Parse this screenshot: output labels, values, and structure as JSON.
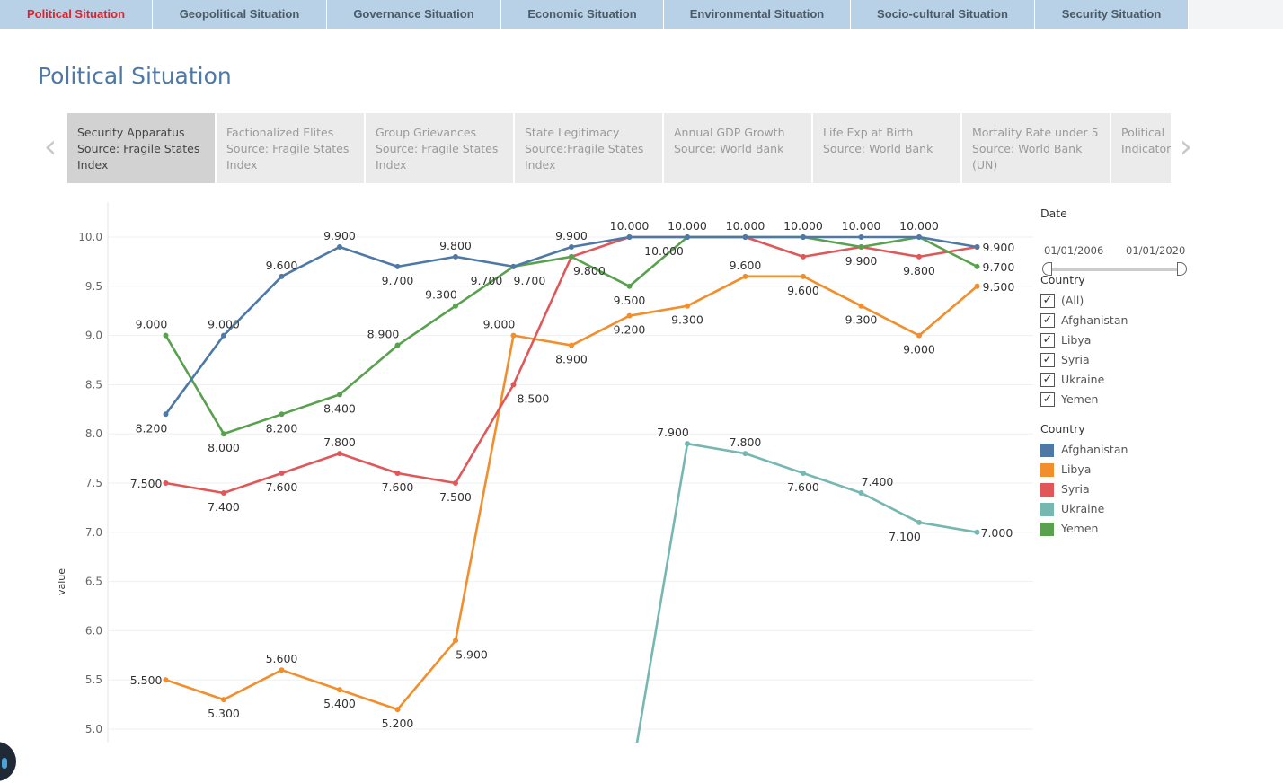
{
  "nav": {
    "tabs": [
      {
        "label": "Political Situation",
        "active": true
      },
      {
        "label": "Geopolitical Situation",
        "active": false
      },
      {
        "label": "Governance Situation",
        "active": false
      },
      {
        "label": "Economic Situation",
        "active": false
      },
      {
        "label": "Environmental Situation",
        "active": false
      },
      {
        "label": "Socio-cultural Situation",
        "active": false
      },
      {
        "label": "Security Situation",
        "active": false
      }
    ]
  },
  "page": {
    "title": "Political Situation"
  },
  "indicators": [
    {
      "lines": [
        "Security Apparatus",
        "Source: Fragile States",
        "Index"
      ],
      "active": true
    },
    {
      "lines": [
        "Factionalized Elites",
        "Source: Fragile States",
        "Index"
      ],
      "active": false
    },
    {
      "lines": [
        "Group Grievances",
        "Source: Fragile States",
        "Index"
      ],
      "active": false
    },
    {
      "lines": [
        "State Legitimacy",
        "Source:Fragile States",
        "Index"
      ],
      "active": false
    },
    {
      "lines": [
        "Annual GDP Growth",
        "Source: World Bank",
        ""
      ],
      "active": false
    },
    {
      "lines": [
        "Life Exp at Birth",
        "Source: World Bank",
        ""
      ],
      "active": false
    },
    {
      "lines": [
        "Mortality Rate under 5",
        "Source: World Bank",
        "(UN)"
      ],
      "active": false
    },
    {
      "lines": [
        "Political",
        "Indicator",
        ""
      ],
      "active": false
    }
  ],
  "carousel": {
    "prev_icon": "chevron-left-icon",
    "next_icon": "chevron-right-icon",
    "prev_glyph": "‹",
    "next_glyph": "›"
  },
  "filters": {
    "date_title": "Date",
    "date_from": "01/01/2006",
    "date_to": "01/01/2020",
    "country_title": "Country",
    "countries": [
      {
        "label": "(All)",
        "checked": true
      },
      {
        "label": "Afghanistan",
        "checked": true
      },
      {
        "label": "Libya",
        "checked": true
      },
      {
        "label": "Syria",
        "checked": true
      },
      {
        "label": "Ukraine",
        "checked": true
      },
      {
        "label": "Yemen",
        "checked": true
      }
    ],
    "check_glyph": "✓"
  },
  "legend": {
    "title": "Country",
    "items": [
      {
        "label": "Afghanistan",
        "color": "#4e79a7"
      },
      {
        "label": "Libya",
        "color": "#f28e2b"
      },
      {
        "label": "Syria",
        "color": "#e15759"
      },
      {
        "label": "Ukraine",
        "color": "#76b7b2"
      },
      {
        "label": "Yemen",
        "color": "#59a14f"
      }
    ]
  },
  "chart_data": {
    "type": "line",
    "title": "",
    "xlabel": "",
    "ylabel": "value",
    "ylim": [
      5.0,
      10.0
    ],
    "yticks": [
      "5.0",
      "5.5",
      "6.0",
      "6.5",
      "7.0",
      "7.5",
      "8.0",
      "8.5",
      "9.0",
      "9.5",
      "10.0"
    ],
    "xlim": [
      2006,
      2020
    ],
    "grid": true,
    "legend_position": "right",
    "series": [
      {
        "name": "Afghanistan",
        "color": "#4e79a7",
        "x": [
          2006,
          2007,
          2008,
          2009,
          2010,
          2011,
          2012,
          2013,
          2014,
          2015,
          2016,
          2017,
          2018,
          2019,
          2020
        ],
        "values": [
          8.2,
          9.0,
          9.6,
          9.9,
          9.7,
          9.8,
          9.7,
          9.9,
          10.0,
          10.0,
          10.0,
          10.0,
          10.0,
          10.0,
          9.9
        ]
      },
      {
        "name": "Libya",
        "color": "#f28e2b",
        "x": [
          2006,
          2007,
          2008,
          2009,
          2010,
          2011,
          2012,
          2013,
          2014,
          2015,
          2016,
          2017,
          2018,
          2019,
          2020
        ],
        "values": [
          5.5,
          5.3,
          5.6,
          5.4,
          5.2,
          5.9,
          9.0,
          8.9,
          9.2,
          9.3,
          9.6,
          9.6,
          9.3,
          9.0,
          9.5
        ]
      },
      {
        "name": "Syria",
        "color": "#e15759",
        "x": [
          2006,
          2007,
          2008,
          2009,
          2010,
          2011,
          2012,
          2013,
          2014,
          2015,
          2016,
          2017,
          2018,
          2019,
          2020
        ],
        "values": [
          7.5,
          7.4,
          7.6,
          7.8,
          7.6,
          7.5,
          8.5,
          9.8,
          10.0,
          10.0,
          10.0,
          9.8,
          9.9,
          9.8,
          9.9
        ]
      },
      {
        "name": "Ukraine",
        "color": "#76b7b2",
        "x": [
          2014,
          2015,
          2016,
          2017,
          2018,
          2019,
          2020
        ],
        "values": [
          4.4,
          7.9,
          7.8,
          7.6,
          7.4,
          7.1,
          7.0
        ]
      },
      {
        "name": "Yemen",
        "color": "#59a14f",
        "x": [
          2006,
          2007,
          2008,
          2009,
          2010,
          2011,
          2012,
          2013,
          2014,
          2015,
          2016,
          2017,
          2018,
          2019,
          2020
        ],
        "values": [
          9.0,
          8.0,
          8.2,
          8.4,
          8.9,
          9.3,
          9.7,
          9.8,
          9.5,
          10.0,
          10.0,
          10.0,
          9.9,
          10.0,
          9.7
        ]
      }
    ],
    "data_labels": [
      {
        "series": "Afghanistan",
        "x": 2006,
        "text": "8.200"
      },
      {
        "series": "Afghanistan",
        "x": 2007,
        "text": "9.000"
      },
      {
        "series": "Afghanistan",
        "x": 2008,
        "text": "9.600"
      },
      {
        "series": "Afghanistan",
        "x": 2009,
        "text": "9.900"
      },
      {
        "series": "Afghanistan",
        "x": 2010,
        "text": "9.700"
      },
      {
        "series": "Afghanistan",
        "x": 2011,
        "text": "9.800"
      },
      {
        "series": "Afghanistan",
        "x": 2012,
        "text": "9.700"
      },
      {
        "series": "Afghanistan",
        "x": 2013,
        "text": "9.900"
      },
      {
        "series": "Afghanistan",
        "x": 2014,
        "text": "10.000"
      },
      {
        "series": "Afghanistan",
        "x": 2015,
        "text": "10.000"
      },
      {
        "series": "Afghanistan",
        "x": 2016,
        "text": "10.000"
      },
      {
        "series": "Afghanistan",
        "x": 2017,
        "text": "10.000"
      },
      {
        "series": "Afghanistan",
        "x": 2018,
        "text": "10.000"
      },
      {
        "series": "Afghanistan",
        "x": 2019,
        "text": "10.000"
      },
      {
        "series": "Afghanistan",
        "x": 2020,
        "text": "9.900"
      },
      {
        "series": "Yemen",
        "x": 2006,
        "text": "9.000"
      },
      {
        "series": "Yemen",
        "x": 2007,
        "text": "8.000"
      },
      {
        "series": "Yemen",
        "x": 2008,
        "text": "8.200"
      },
      {
        "series": "Yemen",
        "x": 2009,
        "text": "8.400"
      },
      {
        "series": "Yemen",
        "x": 2010,
        "text": "8.900"
      },
      {
        "series": "Yemen",
        "x": 2011,
        "text": "9.300"
      },
      {
        "series": "Yemen",
        "x": 2012,
        "text": "9.700"
      },
      {
        "series": "Yemen",
        "x": 2014,
        "text": "9.500"
      },
      {
        "series": "Yemen",
        "x": 2015,
        "text": "10.000"
      },
      {
        "series": "Yemen",
        "x": 2020,
        "text": "9.700"
      },
      {
        "series": "Syria",
        "x": 2006,
        "text": "7.500"
      },
      {
        "series": "Syria",
        "x": 2007,
        "text": "7.400"
      },
      {
        "series": "Syria",
        "x": 2008,
        "text": "7.600"
      },
      {
        "series": "Syria",
        "x": 2009,
        "text": "7.800"
      },
      {
        "series": "Syria",
        "x": 2010,
        "text": "7.600"
      },
      {
        "series": "Syria",
        "x": 2011,
        "text": "7.500"
      },
      {
        "series": "Syria",
        "x": 2012,
        "text": "8.500"
      },
      {
        "series": "Syria",
        "x": 2013,
        "text": "9.800"
      },
      {
        "series": "Syria",
        "x": 2018,
        "text": "9.900"
      },
      {
        "series": "Syria",
        "x": 2019,
        "text": "9.800"
      },
      {
        "series": "Libya",
        "x": 2006,
        "text": "5.500"
      },
      {
        "series": "Libya",
        "x": 2007,
        "text": "5.300"
      },
      {
        "series": "Libya",
        "x": 2008,
        "text": "5.600"
      },
      {
        "series": "Libya",
        "x": 2009,
        "text": "5.400"
      },
      {
        "series": "Libya",
        "x": 2010,
        "text": "5.200"
      },
      {
        "series": "Libya",
        "x": 2011,
        "text": "5.900"
      },
      {
        "series": "Libya",
        "x": 2012,
        "text": "9.000"
      },
      {
        "series": "Libya",
        "x": 2013,
        "text": "8.900"
      },
      {
        "series": "Libya",
        "x": 2014,
        "text": "9.200"
      },
      {
        "series": "Libya",
        "x": 2015,
        "text": "9.300"
      },
      {
        "series": "Libya",
        "x": 2016,
        "text": "9.600"
      },
      {
        "series": "Libya",
        "x": 2017,
        "text": "9.600"
      },
      {
        "series": "Libya",
        "x": 2018,
        "text": "9.300"
      },
      {
        "series": "Libya",
        "x": 2019,
        "text": "9.000"
      },
      {
        "series": "Libya",
        "x": 2020,
        "text": "9.500"
      },
      {
        "series": "Ukraine",
        "x": 2015,
        "text": "7.900"
      },
      {
        "series": "Ukraine",
        "x": 2016,
        "text": "7.800"
      },
      {
        "series": "Ukraine",
        "x": 2017,
        "text": "7.600"
      },
      {
        "series": "Ukraine",
        "x": 2018,
        "text": "7.400"
      },
      {
        "series": "Ukraine",
        "x": 2019,
        "text": "7.100"
      },
      {
        "series": "Ukraine",
        "x": 2020,
        "text": "7.000"
      }
    ]
  }
}
